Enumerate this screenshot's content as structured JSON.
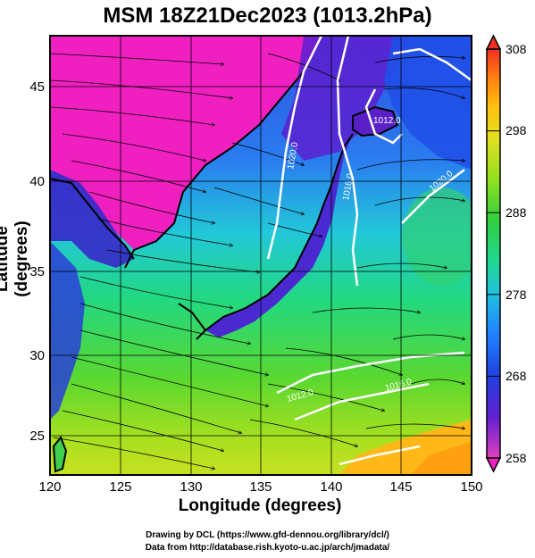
{
  "title": "MSM 18Z21Dec2023 (1013.2hPa)",
  "axes": {
    "xlabel": "Longitude (degrees)",
    "ylabel": "Latitude  (degrees)",
    "xticks": [
      "120",
      "125",
      "130",
      "135",
      "140",
      "145",
      "150"
    ],
    "yticks": [
      "25",
      "30",
      "35",
      "40",
      "45"
    ],
    "xlim": [
      120,
      150
    ],
    "ylim": [
      22.4,
      47.6
    ]
  },
  "colorbar": {
    "ticks": [
      "258",
      "268",
      "278",
      "288",
      "298",
      "308"
    ],
    "range": [
      258,
      308
    ],
    "colors": [
      "#e040c0",
      "#6020d0",
      "#2040e0",
      "#2080ff",
      "#20c0e0",
      "#20d890",
      "#30d040",
      "#90e020",
      "#e0e020",
      "#ffc010",
      "#ff8010",
      "#f03020"
    ]
  },
  "pressure_labels": [
    "1020.0",
    "1016.0",
    "1012.0",
    "1020.0",
    "1012.0",
    "1016.0"
  ],
  "credits": {
    "line1": "Drawing by DCL (https://www.gfd-dennou.org/library/dcl/)",
    "line2": "Data from http://database.rish.kyoto-u.ac.jp/arch/jmadata/"
  }
}
